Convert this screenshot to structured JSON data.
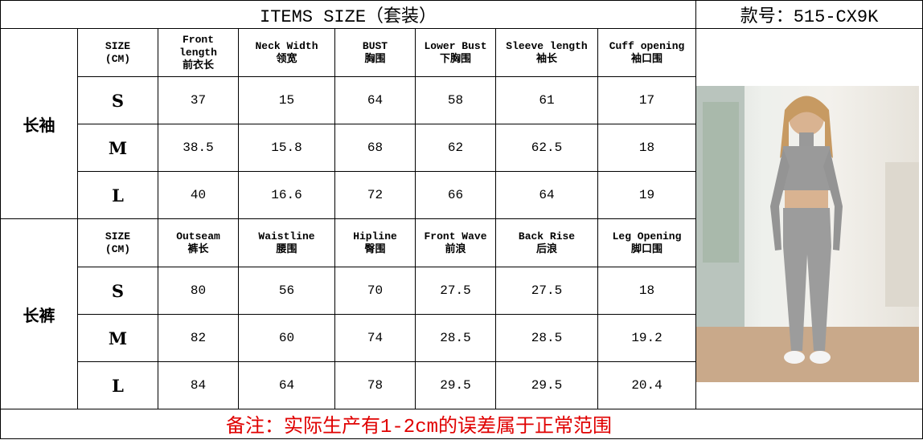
{
  "title": "ITEMS SIZE（套装）",
  "style_code": "款号：515-CX9K",
  "top": {
    "category": "长袖",
    "headers": [
      [
        "SIZE",
        "(CM)"
      ],
      [
        "Front",
        "length",
        "前衣长"
      ],
      [
        "Neck Width",
        "领宽"
      ],
      [
        "BUST",
        "胸围"
      ],
      [
        "Lower Bust",
        "下胸围"
      ],
      [
        "Sleeve length",
        "袖长"
      ],
      [
        "Cuff opening",
        "袖口围"
      ]
    ],
    "rows": [
      [
        "S",
        "37",
        "15",
        "64",
        "58",
        "61",
        "17"
      ],
      [
        "M",
        "38.5",
        "15.8",
        "68",
        "62",
        "62.5",
        "18"
      ],
      [
        "L",
        "40",
        "16.6",
        "72",
        "66",
        "64",
        "19"
      ]
    ]
  },
  "bottom": {
    "category": "长裤",
    "headers": [
      [
        "SIZE",
        "(CM)"
      ],
      [
        "Outseam",
        "裤长"
      ],
      [
        "Waistline",
        "腰围"
      ],
      [
        "Hipline",
        "臀围"
      ],
      [
        "Front Wave",
        "前浪"
      ],
      [
        "Back Rise",
        "后浪"
      ],
      [
        "Leg Opening",
        "脚口围"
      ]
    ],
    "rows": [
      [
        "S",
        "80",
        "56",
        "70",
        "27.5",
        "27.5",
        "18"
      ],
      [
        "M",
        "82",
        "60",
        "74",
        "28.5",
        "28.5",
        "19.2"
      ],
      [
        "L",
        "84",
        "64",
        "78",
        "29.5",
        "29.5",
        "20.4"
      ]
    ]
  },
  "note": "备注：实际生产有1-2cm的误差属于正常范围",
  "colors": {
    "note": "#e00000",
    "garment": "#9a9a9a"
  }
}
